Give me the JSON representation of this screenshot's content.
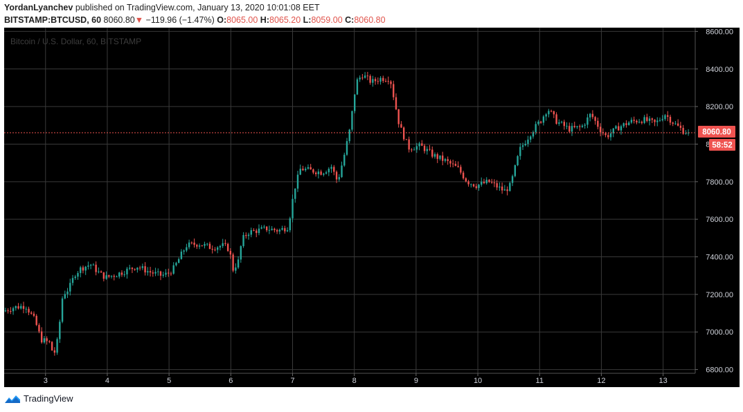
{
  "header": {
    "author": "YordanLyanchev",
    "published_text": "published on TradingView.com, January 13, 2020 10:01:08 EET",
    "symbol": "BITSTAMP:BTCUSD, 60",
    "last": "8060.80",
    "arrow": "▼",
    "change": "−119.96 (−1.47%)",
    "o_label": "O:",
    "o_value": "8065.00",
    "h_label": "H:",
    "h_value": "8065.20",
    "l_label": "L:",
    "l_value": "8059.00",
    "c_label": "C:",
    "c_value": "8060.80"
  },
  "footer": {
    "brand": "TradingView"
  },
  "colors": {
    "background": "#000000",
    "grid": "#3a3a3a",
    "up": "#26a69a",
    "down": "#ef5350",
    "price_line": "#ef5350"
  },
  "chart_data": {
    "type": "candlestick",
    "title": "Bitcoin / U.S. Dollar, 60, BITSTAMP",
    "x_ticks": [
      "3",
      "4",
      "5",
      "6",
      "7",
      "8",
      "9",
      "10",
      "11",
      "12",
      "13"
    ],
    "y_ticks": [
      "6800.00",
      "7000.00",
      "7200.00",
      "7400.00",
      "7600.00",
      "7800.00",
      "8000.00",
      "8200.00",
      "8400.00",
      "8600.00"
    ],
    "ylim": [
      6780,
      8620
    ],
    "xlim": [
      2.33,
      13.52
    ],
    "last_price_label": "8060.80",
    "countdown_label": "58:52",
    "last_price": 8060.8,
    "grid": true,
    "path": [
      [
        2.33,
        7110
      ],
      [
        2.5,
        7130
      ],
      [
        2.7,
        7140
      ],
      [
        2.85,
        7060
      ],
      [
        2.95,
        6960
      ],
      [
        3.1,
        6940
      ],
      [
        3.15,
        6870
      ],
      [
        3.22,
        6960
      ],
      [
        3.3,
        7200
      ],
      [
        3.4,
        7230
      ],
      [
        3.5,
        7310
      ],
      [
        3.6,
        7340
      ],
      [
        3.75,
        7360
      ],
      [
        3.9,
        7310
      ],
      [
        4.0,
        7290
      ],
      [
        4.2,
        7310
      ],
      [
        4.5,
        7350
      ],
      [
        4.7,
        7320
      ],
      [
        4.9,
        7300
      ],
      [
        5.0,
        7310
      ],
      [
        5.1,
        7340
      ],
      [
        5.2,
        7400
      ],
      [
        5.3,
        7460
      ],
      [
        5.5,
        7470
      ],
      [
        5.7,
        7450
      ],
      [
        5.9,
        7460
      ],
      [
        6.0,
        7440
      ],
      [
        6.05,
        7330
      ],
      [
        6.15,
        7380
      ],
      [
        6.2,
        7490
      ],
      [
        6.3,
        7530
      ],
      [
        6.45,
        7540
      ],
      [
        6.6,
        7550
      ],
      [
        6.8,
        7540
      ],
      [
        6.95,
        7560
      ],
      [
        7.05,
        7760
      ],
      [
        7.15,
        7870
      ],
      [
        7.3,
        7860
      ],
      [
        7.5,
        7850
      ],
      [
        7.65,
        7880
      ],
      [
        7.75,
        7800
      ],
      [
        7.85,
        7930
      ],
      [
        7.95,
        8080
      ],
      [
        8.05,
        8330
      ],
      [
        8.15,
        8370
      ],
      [
        8.3,
        8330
      ],
      [
        8.45,
        8350
      ],
      [
        8.6,
        8350
      ],
      [
        8.75,
        8100
      ],
      [
        8.9,
        7980
      ],
      [
        9.1,
        7990
      ],
      [
        9.3,
        7940
      ],
      [
        9.5,
        7910
      ],
      [
        9.7,
        7870
      ],
      [
        9.85,
        7800
      ],
      [
        10.0,
        7780
      ],
      [
        10.2,
        7800
      ],
      [
        10.35,
        7770
      ],
      [
        10.45,
        7750
      ],
      [
        10.55,
        7780
      ],
      [
        10.7,
        7970
      ],
      [
        10.9,
        8070
      ],
      [
        11.05,
        8130
      ],
      [
        11.15,
        8190
      ],
      [
        11.3,
        8120
      ],
      [
        11.5,
        8080
      ],
      [
        11.7,
        8090
      ],
      [
        11.85,
        8160
      ],
      [
        12.0,
        8080
      ],
      [
        12.1,
        8040
      ],
      [
        12.3,
        8090
      ],
      [
        12.5,
        8120
      ],
      [
        12.7,
        8130
      ],
      [
        12.9,
        8110
      ],
      [
        13.05,
        8160
      ],
      [
        13.2,
        8110
      ],
      [
        13.35,
        8070
      ],
      [
        13.43,
        8061
      ]
    ]
  }
}
